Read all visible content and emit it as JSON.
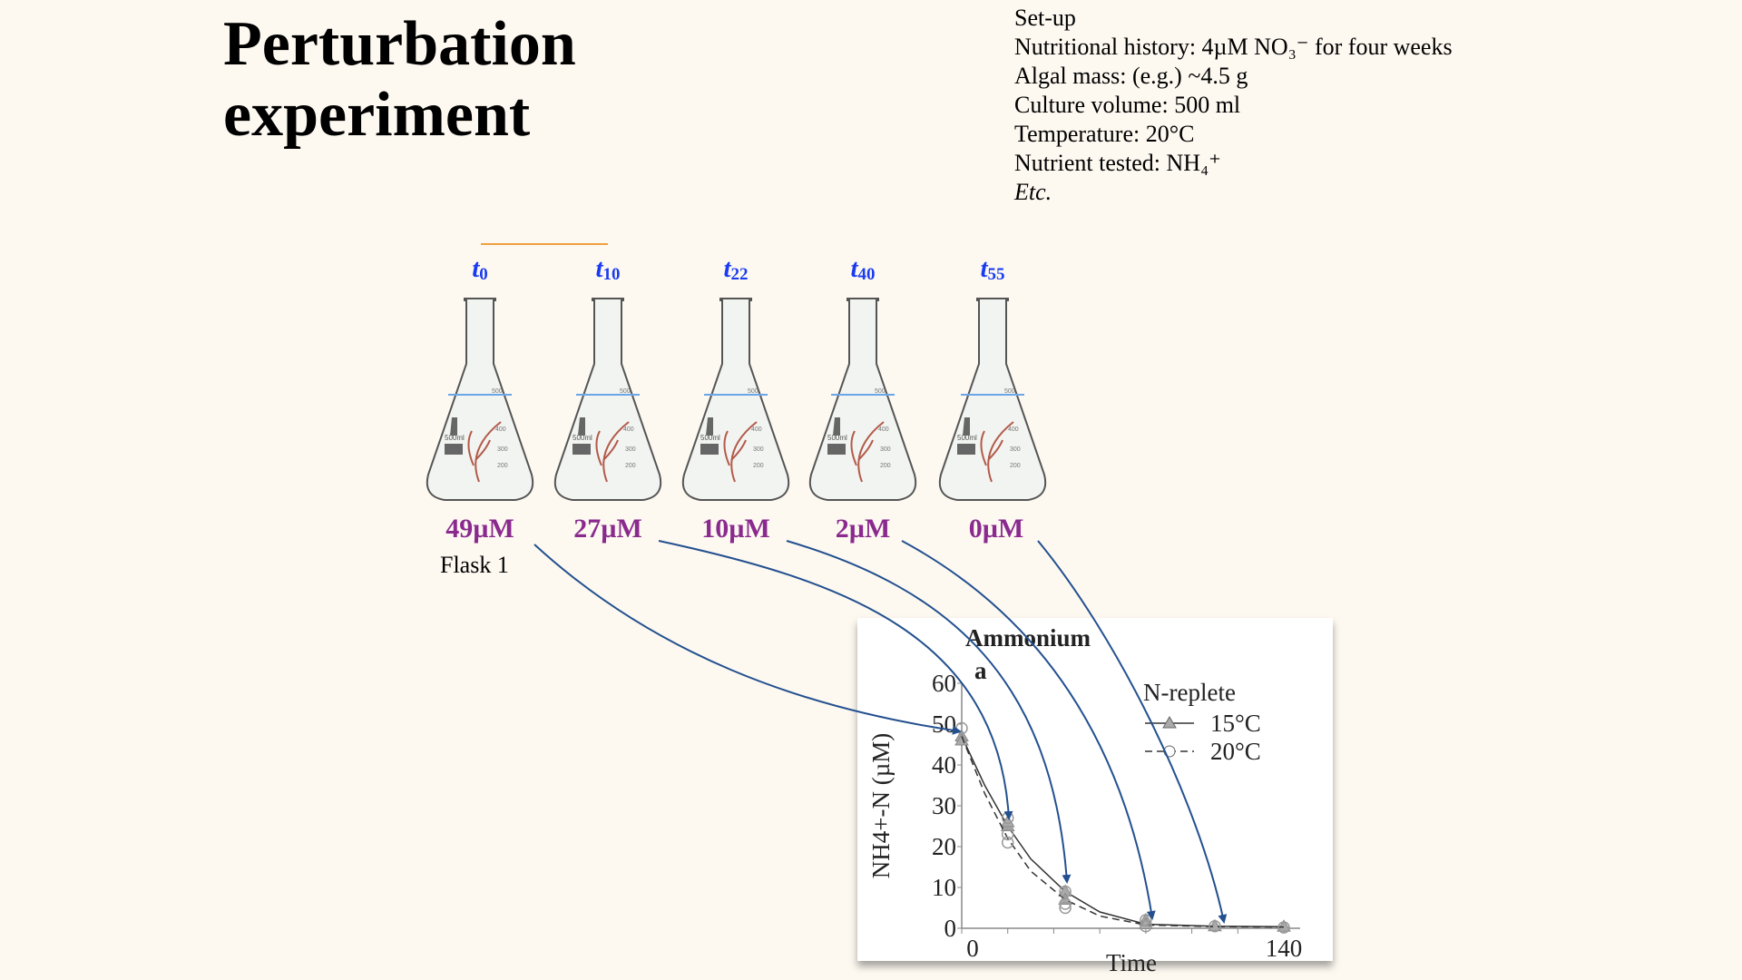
{
  "title": {
    "line1": "Perturbation",
    "line2": "experiment"
  },
  "setup": {
    "heading": "Set-up",
    "nutritional_history": "Nutritional history: 4µM NO₃⁻ for four weeks",
    "algal_mass": "Algal mass: (e.g.) ~4.5 g",
    "culture_volume": "Culture volume: 500 ml",
    "temperature": "Temperature: 20°C",
    "nutrient_tested": "Nutrient tested: NH₄⁺",
    "etc": "Etc."
  },
  "flasks": [
    {
      "t": "t",
      "sub": "0",
      "conc": "49µM"
    },
    {
      "t": "t",
      "sub": "10",
      "conc": "27µM"
    },
    {
      "t": "t",
      "sub": "22",
      "conc": "10µM"
    },
    {
      "t": "t",
      "sub": "40",
      "conc": "2µM"
    },
    {
      "t": "t",
      "sub": "55",
      "conc": "0µM"
    }
  ],
  "flask_note": "Flask 1",
  "flask_markings": {
    "volume": "500ml",
    "graduations": [
      "500",
      "400",
      "300",
      "200"
    ]
  },
  "colors": {
    "time_label": "#1a3cf0",
    "concentration": "#8a2a8e",
    "arrow": "#23508f",
    "accent_line": "#f0a040"
  },
  "chart_data": {
    "type": "scatter",
    "title": "Ammonium",
    "panel_label": "a",
    "xlabel": "Time",
    "ylabel": "NH4+-N (µM)",
    "xlim": [
      0,
      140
    ],
    "ylim": [
      0,
      60
    ],
    "xticks_labeled": [
      "0",
      "140"
    ],
    "xticks": [
      0,
      20,
      40,
      60,
      80,
      100,
      120,
      140
    ],
    "yticks": [
      "0",
      "10",
      "20",
      "30",
      "40",
      "50",
      "60"
    ],
    "legend_title": "N-replete",
    "legend_position": "top-right",
    "series": [
      {
        "name": "15°C",
        "marker": "triangle",
        "line": "solid",
        "x": [
          0,
          0,
          20,
          20,
          45,
          45,
          80,
          80,
          110,
          140
        ],
        "y": [
          47,
          46,
          25,
          26,
          9,
          7,
          2,
          1,
          0.5,
          0.4
        ],
        "curve_x": [
          0,
          10,
          20,
          30,
          45,
          60,
          80,
          110,
          140
        ],
        "curve_y": [
          47,
          35,
          25,
          17,
          9,
          4,
          1,
          0.5,
          0.4
        ]
      },
      {
        "name": "20°C",
        "marker": "circle",
        "line": "dashed",
        "x": [
          0,
          20,
          20,
          20,
          45,
          45,
          45,
          80,
          80,
          110,
          140
        ],
        "y": [
          49,
          27,
          23,
          21,
          9,
          6,
          5,
          2,
          0.5,
          0.5,
          0.2
        ],
        "curve_x": [
          0,
          10,
          20,
          30,
          45,
          60,
          80,
          110,
          140
        ],
        "curve_y": [
          47,
          33,
          22,
          14,
          7,
          3,
          0.8,
          0.4,
          0.3
        ]
      }
    ]
  }
}
